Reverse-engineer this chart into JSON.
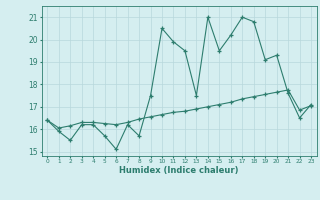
{
  "xlabel": "Humidex (Indice chaleur)",
  "ylabel": "",
  "x": [
    0,
    1,
    2,
    3,
    4,
    5,
    6,
    7,
    8,
    9,
    10,
    11,
    12,
    13,
    14,
    15,
    16,
    17,
    18,
    19,
    20,
    21,
    22,
    23
  ],
  "line1_y": [
    16.4,
    15.9,
    15.5,
    16.2,
    16.2,
    15.7,
    15.1,
    16.2,
    15.7,
    17.5,
    20.5,
    19.9,
    19.5,
    17.5,
    21.0,
    19.5,
    20.2,
    21.0,
    20.8,
    19.1,
    19.3,
    17.6,
    16.5,
    17.1
  ],
  "line2_y": [
    16.4,
    16.05,
    16.15,
    16.3,
    16.3,
    16.25,
    16.2,
    16.3,
    16.45,
    16.55,
    16.65,
    16.75,
    16.8,
    16.9,
    17.0,
    17.1,
    17.2,
    17.35,
    17.45,
    17.55,
    17.65,
    17.75,
    16.85,
    17.05
  ],
  "line_color": "#2d7d6e",
  "bg_color": "#d5eef0",
  "grid_color": "#b8d8dc",
  "ylim": [
    14.8,
    21.5
  ],
  "yticks": [
    15,
    16,
    17,
    18,
    19,
    20,
    21
  ],
  "xlim": [
    -0.5,
    23.5
  ]
}
